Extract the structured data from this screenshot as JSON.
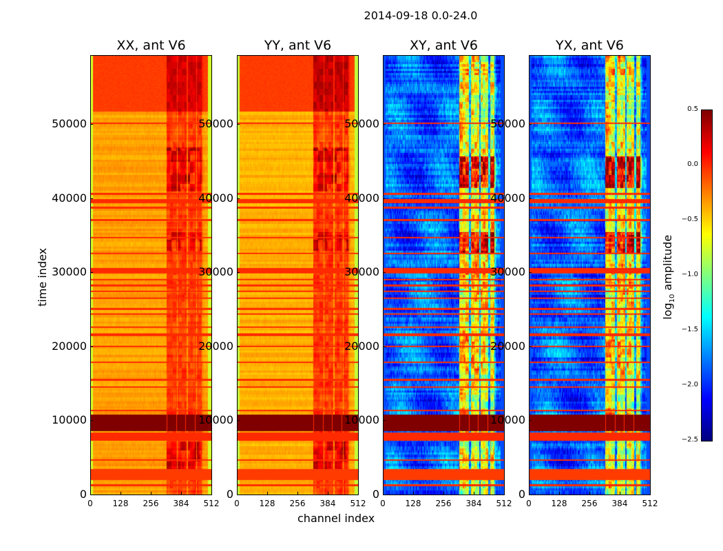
{
  "chart_data": {
    "type": "heatmap",
    "title": "2014-09-18 0.0-24.0",
    "xlabel": "channel index",
    "ylabel": "time index",
    "xlim": [
      0,
      512
    ],
    "ylim": [
      0,
      59300
    ],
    "xticks": [
      "0",
      "128",
      "256",
      "384",
      "512"
    ],
    "yticks": [
      "0",
      "10000",
      "20000",
      "30000",
      "40000",
      "50000"
    ],
    "colormap": "jet",
    "colorbar": {
      "label_main": "log",
      "label_sub": "10",
      "label_rest": " amplitude",
      "range": [
        -2.5,
        0.5
      ],
      "ticks": [
        "0.5",
        "0.0",
        "−0.5",
        "−1.0",
        "−1.5",
        "−2.0",
        "−2.5"
      ]
    },
    "panels": [
      {
        "title": "XX, ant V6",
        "base": -0.35,
        "top_block": [
          51800,
          59300,
          -0.05
        ],
        "band_region": [
          320,
          480
        ],
        "band_boost": 0.3,
        "edge_value": -0.75
      },
      {
        "title": "YY, ant V6",
        "base": -0.4,
        "top_block": [
          51800,
          59300,
          -0.05
        ],
        "band_region": [
          320,
          480
        ],
        "band_boost": 0.35,
        "edge_value": -0.8
      },
      {
        "title": "XY, ant V6",
        "base": -1.85,
        "top_block": null,
        "band_region": [
          320,
          480
        ],
        "band_boost": 1.2,
        "edge_value": -1.9
      },
      {
        "title": "YX, ant V6",
        "base": -1.85,
        "top_block": null,
        "band_region": [
          320,
          480
        ],
        "band_boost": 1.2,
        "edge_value": -1.9
      }
    ],
    "flag_bands": [
      {
        "t0": 50100,
        "t1": 50300,
        "value": 0.0
      },
      {
        "t0": 40500,
        "t1": 40800,
        "value": 0.0
      },
      {
        "t0": 39400,
        "t1": 40000,
        "value": 0.0
      },
      {
        "t0": 38700,
        "t1": 39000,
        "value": 0.0
      },
      {
        "t0": 37000,
        "t1": 37300,
        "value": 0.0
      },
      {
        "t0": 34700,
        "t1": 34900,
        "value": 0.0
      },
      {
        "t0": 32500,
        "t1": 32700,
        "value": 0.0
      },
      {
        "t0": 29900,
        "t1": 30700,
        "value": 0.0
      },
      {
        "t0": 29000,
        "t1": 29200,
        "value": 0.0
      },
      {
        "t0": 28200,
        "t1": 28400,
        "value": 0.0
      },
      {
        "t0": 27400,
        "t1": 27600,
        "value": 0.0
      },
      {
        "t0": 26500,
        "t1": 26700,
        "value": 0.0
      },
      {
        "t0": 25000,
        "t1": 25300,
        "value": 0.0
      },
      {
        "t0": 24300,
        "t1": 24500,
        "value": 0.0
      },
      {
        "t0": 22600,
        "t1": 22800,
        "value": 0.0
      },
      {
        "t0": 21500,
        "t1": 21800,
        "value": 0.0
      },
      {
        "t0": 20000,
        "t1": 20200,
        "value": 0.0
      },
      {
        "t0": 17800,
        "t1": 18000,
        "value": 0.0
      },
      {
        "t0": 15400,
        "t1": 15700,
        "value": 0.0
      },
      {
        "t0": 14500,
        "t1": 14700,
        "value": 0.0
      },
      {
        "t0": 11300,
        "t1": 11500,
        "value": 0.0
      },
      {
        "t0": 8600,
        "t1": 10800,
        "value": 0.5
      },
      {
        "t0": 7300,
        "t1": 8400,
        "value": 0.0
      },
      {
        "t0": 4600,
        "t1": 4800,
        "value": 0.0
      },
      {
        "t0": 2000,
        "t1": 3500,
        "value": -0.05
      },
      {
        "t0": 1200,
        "t1": 1400,
        "value": 0.0
      }
    ]
  }
}
